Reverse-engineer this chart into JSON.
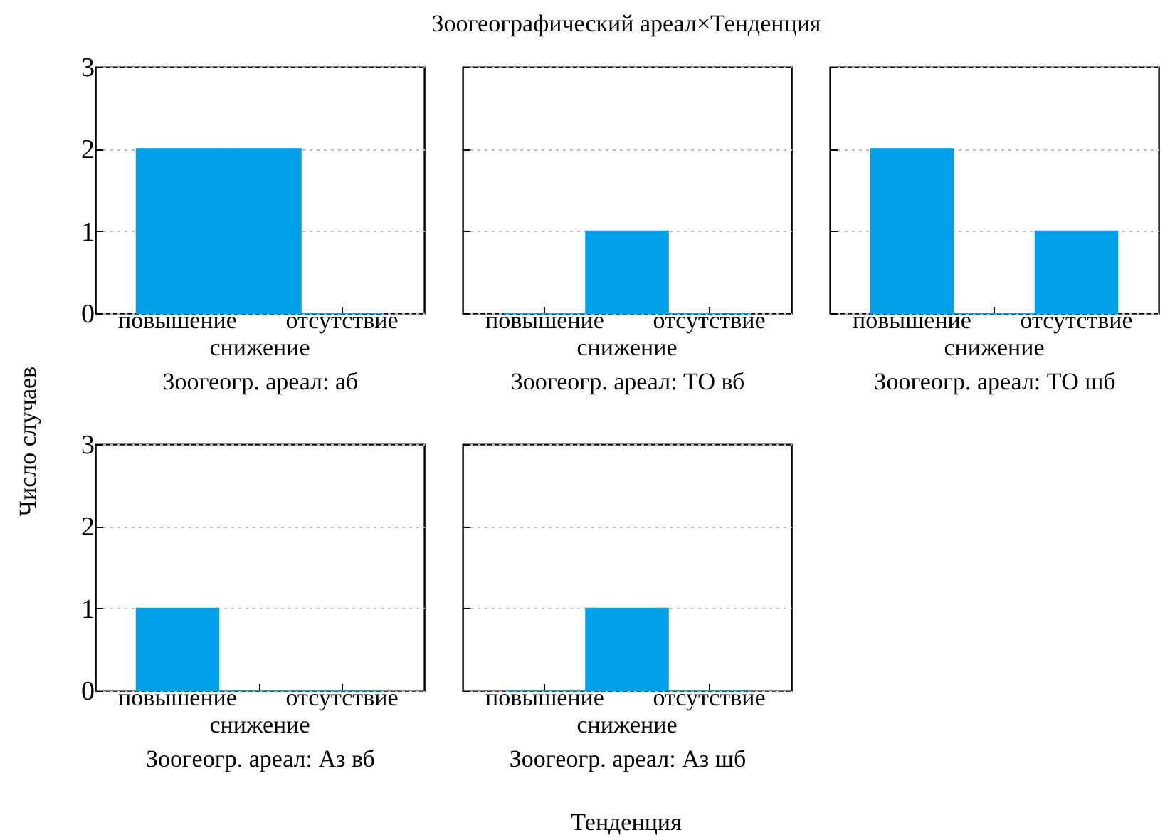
{
  "chart_data": [
    {
      "type": "bar",
      "ylabel": "Число случаев",
      "xlabel": "Зоогеогр. ареал: аб",
      "categories": [
        "повышение",
        "снижение",
        "отсутствие"
      ],
      "values": [
        2,
        2,
        0
      ],
      "color": "#00a0e8",
      "ylim": [
        0,
        3
      ],
      "yticks": [
        0,
        1,
        2,
        3
      ],
      "grid": "y"
    },
    {
      "type": "bar",
      "title": "Зоогеографический ареал×Тенденция",
      "xlabel": "Зоогеогр. ареал: ТО вб",
      "categories": [
        "повышение",
        "снижение",
        "отсутствие"
      ],
      "values": [
        0,
        1,
        0
      ],
      "color": "#00a0e8",
      "ylim": [
        0,
        3
      ],
      "yticks": [
        0,
        1,
        2,
        3
      ],
      "grid": "y",
      "tick_labels": "x"
    },
    {
      "type": "bar",
      "xlabel": "Зоогеогр. ареал: ТО шб",
      "categories": [
        "повышение",
        "снижение",
        "отсутствие"
      ],
      "values": [
        2,
        0,
        1
      ],
      "color": "#00a0e8",
      "ylim": [
        0,
        3
      ],
      "yticks": [
        0,
        1,
        2,
        3
      ],
      "grid": "y",
      "tick_labels": "x"
    },
    {
      "type": "bar",
      "xlabel": "Зоогеогр. ареал: Аз вб",
      "categories": [
        "повышение",
        "снижение",
        "отсутствие"
      ],
      "values": [
        1,
        0,
        0
      ],
      "color": "#00a0e8",
      "ylim": [
        0,
        3
      ],
      "yticks": [
        0,
        1,
        2,
        3
      ],
      "grid": "y"
    },
    {
      "type": "bar",
      "annotations": [
        "Тенденция"
      ],
      "xlabel": "Зоогеогр. ареал: Аз шб",
      "categories": [
        "повышение",
        "снижение",
        "отсутствие"
      ],
      "values": [
        0,
        1,
        0
      ],
      "color": "#00a0e8",
      "ylim": [
        0,
        3
      ],
      "yticks": [
        0,
        1,
        2,
        3
      ],
      "grid": "y",
      "tick_labels": "x"
    }
  ]
}
